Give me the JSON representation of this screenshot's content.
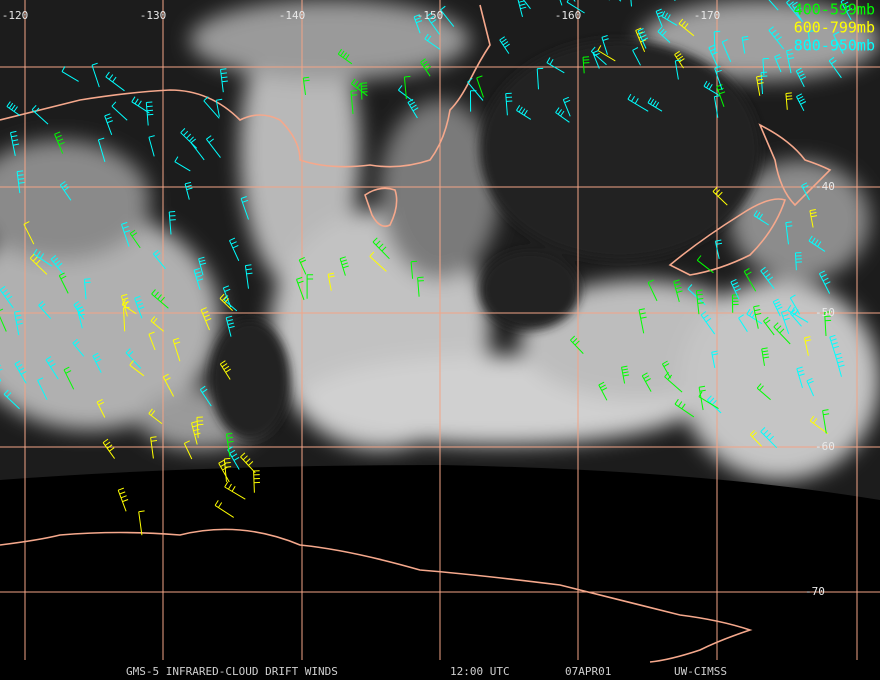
{
  "map": {
    "longitude_labels": [
      "-120",
      "-130",
      "-140",
      "-150",
      "-160",
      "-170"
    ],
    "latitude_labels": [
      "-40",
      "-50",
      "-60",
      "-70"
    ],
    "legend": [
      {
        "label": "400-599mb",
        "color": "#00ff00"
      },
      {
        "label": "600-799mb",
        "color": "#ffff00"
      },
      {
        "label": "800-950mb",
        "color": "#00ffff"
      }
    ],
    "footer": {
      "title": "GMS-5 INFRARED-CLOUD DRIFT WINDS",
      "time": "12:00 UTC",
      "date": "07APR01",
      "source": "UW-CIMSS"
    }
  }
}
